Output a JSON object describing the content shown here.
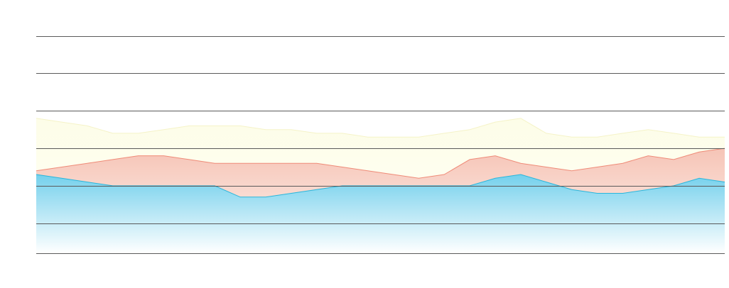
{
  "chart_data": {
    "type": "area",
    "title": "",
    "xlabel": "",
    "ylabel": "",
    "grid": true,
    "legend": "none",
    "ylim": [
      0,
      6
    ],
    "gridlines": [
      0,
      0.8,
      1.8,
      2.8,
      3.8,
      4.8,
      5.8
    ],
    "x": [
      0,
      1,
      2,
      3,
      4,
      5,
      6,
      7,
      8,
      9,
      10,
      11,
      12,
      13,
      14,
      15,
      16,
      17,
      18,
      19,
      20,
      21,
      22,
      23,
      24,
      25,
      26,
      27
    ],
    "series": [
      {
        "color": "#29b6dc",
        "fill_top": "#74d0ec",
        "fill_bottom": "#ffffff",
        "values": [
          2.1,
          2.0,
          1.9,
          1.8,
          1.8,
          1.8,
          1.8,
          1.8,
          1.5,
          1.5,
          1.6,
          1.7,
          1.8,
          1.8,
          1.8,
          1.8,
          1.8,
          1.8,
          2.0,
          2.1,
          1.9,
          1.7,
          1.6,
          1.6,
          1.7,
          1.8,
          2.0,
          1.9
        ]
      },
      {
        "color": "#ef8b78",
        "fill_top": "#f6c4b6",
        "fill_bottom": "#fef6f2",
        "values": [
          2.2,
          2.3,
          2.4,
          2.5,
          2.6,
          2.6,
          2.5,
          2.4,
          2.4,
          2.4,
          2.4,
          2.4,
          2.3,
          2.2,
          2.1,
          2.0,
          2.1,
          2.5,
          2.6,
          2.4,
          2.3,
          2.2,
          2.3,
          2.4,
          2.6,
          2.5,
          2.7,
          2.8
        ]
      },
      {
        "color": "#f5f3c8",
        "fill_top": "#fdfde8",
        "fill_bottom": "#fffff8",
        "values": [
          3.6,
          3.5,
          3.4,
          3.2,
          3.2,
          3.3,
          3.4,
          3.4,
          3.4,
          3.3,
          3.3,
          3.2,
          3.2,
          3.1,
          3.1,
          3.1,
          3.2,
          3.3,
          3.5,
          3.6,
          3.2,
          3.1,
          3.1,
          3.2,
          3.3,
          3.2,
          3.1,
          3.1
        ]
      }
    ]
  }
}
